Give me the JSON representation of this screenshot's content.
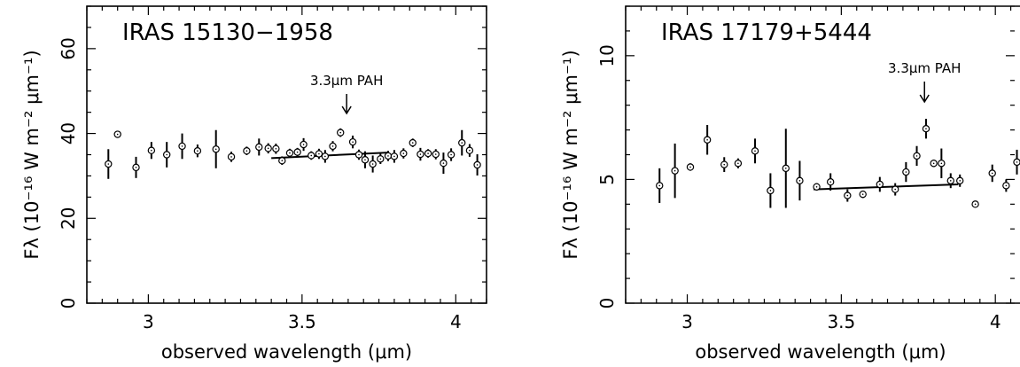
{
  "chart_data": [
    {
      "type": "scatter",
      "title": "IRAS 15130−1958",
      "xlabel": "observed wavelength (μm)",
      "ylabel": "Fλ (10⁻¹⁶ W m⁻² μm⁻¹)",
      "xlim": [
        2.8,
        4.1
      ],
      "ylim": [
        0,
        70
      ],
      "xticks": [
        3,
        3.5,
        4
      ],
      "xtick_labels": [
        "3",
        "3.5",
        "4"
      ],
      "yticks": [
        0,
        20,
        40,
        60
      ],
      "ytick_labels": [
        "0",
        "20",
        "40",
        "60"
      ],
      "annotation": {
        "text": "3.3μm PAH",
        "x": 3.645
      },
      "continuum": {
        "x": [
          3.4,
          3.78
        ],
        "y": [
          34.2,
          35.5
        ]
      },
      "points": [
        {
          "x": 2.87,
          "y": 32.8,
          "err": 3.5
        },
        {
          "x": 2.9,
          "y": 39.8,
          "err": 0.8
        },
        {
          "x": 2.96,
          "y": 32.0,
          "err": 2.5
        },
        {
          "x": 3.01,
          "y": 36.0,
          "err": 2.0
        },
        {
          "x": 3.06,
          "y": 35.0,
          "err": 3.0
        },
        {
          "x": 3.11,
          "y": 37.0,
          "err": 3.0
        },
        {
          "x": 3.16,
          "y": 35.9,
          "err": 1.5
        },
        {
          "x": 3.22,
          "y": 36.3,
          "err": 4.5
        },
        {
          "x": 3.27,
          "y": 34.5,
          "err": 1.2
        },
        {
          "x": 3.32,
          "y": 35.9,
          "err": 1.0
        },
        {
          "x": 3.36,
          "y": 36.8,
          "err": 2.0
        },
        {
          "x": 3.39,
          "y": 36.5,
          "err": 1.2
        },
        {
          "x": 3.415,
          "y": 36.4,
          "err": 1.2
        },
        {
          "x": 3.435,
          "y": 33.6,
          "err": 1.0
        },
        {
          "x": 3.46,
          "y": 35.4,
          "err": 1.0
        },
        {
          "x": 3.485,
          "y": 35.6,
          "err": 1.0
        },
        {
          "x": 3.505,
          "y": 37.4,
          "err": 1.5
        },
        {
          "x": 3.53,
          "y": 34.8,
          "err": 1.0
        },
        {
          "x": 3.555,
          "y": 35.2,
          "err": 1.2
        },
        {
          "x": 3.575,
          "y": 34.6,
          "err": 1.5
        },
        {
          "x": 3.6,
          "y": 37.0,
          "err": 1.2
        },
        {
          "x": 3.625,
          "y": 40.2,
          "err": 1.0
        },
        {
          "x": 3.665,
          "y": 38.0,
          "err": 1.5
        },
        {
          "x": 3.685,
          "y": 35.0,
          "err": 1.2
        },
        {
          "x": 3.705,
          "y": 33.8,
          "err": 2.0
        },
        {
          "x": 3.73,
          "y": 32.8,
          "err": 2.0
        },
        {
          "x": 3.755,
          "y": 34.0,
          "err": 1.2
        },
        {
          "x": 3.78,
          "y": 34.7,
          "err": 1.2
        },
        {
          "x": 3.8,
          "y": 34.6,
          "err": 1.5
        },
        {
          "x": 3.83,
          "y": 35.3,
          "err": 1.2
        },
        {
          "x": 3.86,
          "y": 37.8,
          "err": 1.0
        },
        {
          "x": 3.885,
          "y": 35.1,
          "err": 1.5
        },
        {
          "x": 3.91,
          "y": 35.3,
          "err": 1.0
        },
        {
          "x": 3.935,
          "y": 35.1,
          "err": 1.2
        },
        {
          "x": 3.96,
          "y": 33.0,
          "err": 2.5
        },
        {
          "x": 3.985,
          "y": 35.0,
          "err": 1.5
        },
        {
          "x": 4.02,
          "y": 37.8,
          "err": 3.0
        },
        {
          "x": 4.045,
          "y": 36.0,
          "err": 1.5
        },
        {
          "x": 4.07,
          "y": 32.6,
          "err": 2.5
        }
      ]
    },
    {
      "type": "scatter",
      "title": "IRAS 17179+5444",
      "xlabel": "observed wavelength (μm)",
      "ylabel": "Fλ (10⁻¹⁶ W m⁻² μm⁻¹)",
      "xlim": [
        2.8,
        4.08
      ],
      "ylim": [
        0,
        12
      ],
      "xticks": [
        3,
        3.5,
        4
      ],
      "xtick_labels": [
        "3",
        "3.5",
        "4"
      ],
      "yticks": [
        0,
        5,
        10
      ],
      "ytick_labels": [
        "0",
        "5",
        "10"
      ],
      "annotation": {
        "text": "3.3μm PAH",
        "x": 3.77
      },
      "continuum": {
        "x": [
          3.41,
          3.88
        ],
        "y": [
          4.6,
          4.8
        ]
      },
      "points": [
        {
          "x": 2.91,
          "y": 4.75,
          "err": 0.7
        },
        {
          "x": 2.96,
          "y": 5.35,
          "err": 1.1
        },
        {
          "x": 3.01,
          "y": 5.5,
          "err": 0.15
        },
        {
          "x": 3.065,
          "y": 6.6,
          "err": 0.6
        },
        {
          "x": 3.12,
          "y": 5.6,
          "err": 0.3
        },
        {
          "x": 3.165,
          "y": 5.65,
          "err": 0.2
        },
        {
          "x": 3.22,
          "y": 6.15,
          "err": 0.5
        },
        {
          "x": 3.27,
          "y": 4.55,
          "err": 0.7
        },
        {
          "x": 3.32,
          "y": 5.45,
          "err": 1.6
        },
        {
          "x": 3.365,
          "y": 4.95,
          "err": 0.8
        },
        {
          "x": 3.42,
          "y": 4.7,
          "err": 0.15
        },
        {
          "x": 3.465,
          "y": 4.9,
          "err": 0.35
        },
        {
          "x": 3.52,
          "y": 4.35,
          "err": 0.25
        },
        {
          "x": 3.57,
          "y": 4.4,
          "err": 0.15
        },
        {
          "x": 3.625,
          "y": 4.8,
          "err": 0.3
        },
        {
          "x": 3.675,
          "y": 4.6,
          "err": 0.25
        },
        {
          "x": 3.71,
          "y": 5.3,
          "err": 0.4
        },
        {
          "x": 3.745,
          "y": 5.95,
          "err": 0.4
        },
        {
          "x": 3.775,
          "y": 7.05,
          "err": 0.4
        },
        {
          "x": 3.8,
          "y": 5.65,
          "err": 0.15
        },
        {
          "x": 3.825,
          "y": 5.65,
          "err": 0.6
        },
        {
          "x": 3.855,
          "y": 4.95,
          "err": 0.3
        },
        {
          "x": 3.885,
          "y": 4.95,
          "err": 0.25
        },
        {
          "x": 3.935,
          "y": 4.0,
          "err": 0.1
        },
        {
          "x": 3.99,
          "y": 5.25,
          "err": 0.35
        },
        {
          "x": 4.035,
          "y": 4.75,
          "err": 0.25
        },
        {
          "x": 4.07,
          "y": 5.7,
          "err": 0.5
        }
      ]
    }
  ]
}
